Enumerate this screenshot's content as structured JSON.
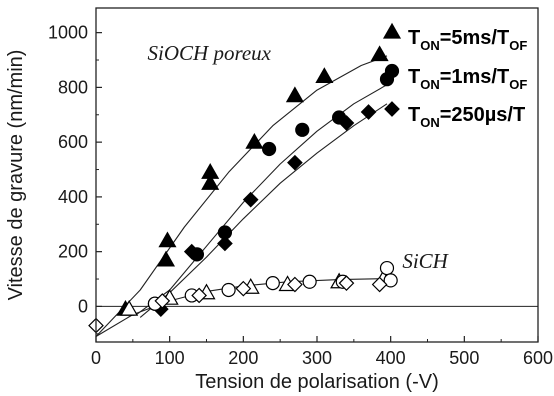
{
  "chart_data": {
    "type": "scatter",
    "title": "",
    "xlabel": "Tension de polarisation (-V)",
    "ylabel": "Vitesse de gravure (nm/min)",
    "xlim": [
      0,
      600
    ],
    "ylim": [
      -130,
      1090
    ],
    "xticks": [
      0,
      100,
      200,
      300,
      400,
      500,
      600
    ],
    "yticks": [
      0,
      200,
      400,
      600,
      800,
      1000
    ],
    "grid": false,
    "zero_line": true,
    "annotations": [
      {
        "text": "SiOCH poreux",
        "x": 165,
        "y": 900
      },
      {
        "text": "SiCH",
        "x": 443,
        "y": 140
      }
    ],
    "legend_position": "top-right",
    "legend": [
      {
        "main": "T",
        "sub": "ON",
        "rest": "=5ms/T",
        "tail": "OF",
        "marker": "filled-triangle"
      },
      {
        "main": "T",
        "sub": "ON",
        "rest": "=1ms/T",
        "tail": "OF",
        "marker": "filled-circle"
      },
      {
        "main": "T",
        "sub": "ON",
        "rest": "=250µs/T",
        "tail": "",
        "marker": "filled-diamond"
      }
    ],
    "series": [
      {
        "material": "SiOCH poreux",
        "marker": "filled-triangle",
        "points": [
          [
            40,
            -10
          ],
          [
            95,
            170
          ],
          [
            97,
            240
          ],
          [
            155,
            490
          ],
          [
            155,
            450
          ],
          [
            215,
            600
          ],
          [
            270,
            770
          ],
          [
            310,
            840
          ],
          [
            385,
            920
          ]
        ],
        "fit": [
          [
            0,
            -110
          ],
          [
            60,
            60
          ],
          [
            120,
            290
          ],
          [
            180,
            490
          ],
          [
            240,
            660
          ],
          [
            300,
            790
          ],
          [
            360,
            880
          ],
          [
            395,
            915
          ]
        ]
      },
      {
        "material": "SiOCH poreux",
        "marker": "filled-circle",
        "points": [
          [
            80,
            10
          ],
          [
            137,
            190
          ],
          [
            175,
            270
          ],
          [
            235,
            575
          ],
          [
            280,
            645
          ],
          [
            330,
            690
          ],
          [
            395,
            830
          ]
        ],
        "fit": [
          [
            55,
            -30
          ],
          [
            100,
            60
          ],
          [
            150,
            220
          ],
          [
            200,
            380
          ],
          [
            250,
            520
          ],
          [
            300,
            640
          ],
          [
            350,
            740
          ],
          [
            395,
            810
          ]
        ]
      },
      {
        "material": "SiOCH poreux",
        "marker": "filled-diamond",
        "points": [
          [
            88,
            -10
          ],
          [
            130,
            200
          ],
          [
            175,
            230
          ],
          [
            210,
            390
          ],
          [
            270,
            525
          ],
          [
            340,
            670
          ],
          [
            370,
            710
          ]
        ],
        "fit": [
          [
            60,
            -40
          ],
          [
            100,
            50
          ],
          [
            150,
            180
          ],
          [
            200,
            320
          ],
          [
            250,
            450
          ],
          [
            300,
            560
          ],
          [
            350,
            660
          ],
          [
            395,
            740
          ]
        ]
      },
      {
        "material": "SiCH",
        "marker": "open-triangle",
        "points": [
          [
            45,
            -10
          ],
          [
            100,
            30
          ],
          [
            150,
            50
          ],
          [
            210,
            70
          ],
          [
            260,
            80
          ],
          [
            330,
            90
          ],
          [
            390,
            100
          ]
        ],
        "fit": [
          [
            0,
            -110
          ],
          [
            50,
            -30
          ],
          [
            100,
            20
          ],
          [
            150,
            55
          ],
          [
            200,
            75
          ],
          [
            260,
            90
          ],
          [
            330,
            98
          ],
          [
            400,
            102
          ]
        ]
      },
      {
        "material": "SiCH",
        "marker": "open-circle",
        "points": [
          [
            80,
            10
          ],
          [
            130,
            40
          ],
          [
            180,
            60
          ],
          [
            240,
            85
          ],
          [
            290,
            90
          ],
          [
            335,
            90
          ],
          [
            395,
            140
          ],
          [
            400,
            95
          ]
        ],
        "fit": []
      },
      {
        "material": "SiCH",
        "marker": "open-diamond",
        "points": [
          [
            0,
            -70
          ],
          [
            90,
            20
          ],
          [
            140,
            40
          ],
          [
            200,
            65
          ],
          [
            270,
            80
          ],
          [
            340,
            85
          ],
          [
            385,
            80
          ]
        ],
        "fit": []
      }
    ]
  }
}
